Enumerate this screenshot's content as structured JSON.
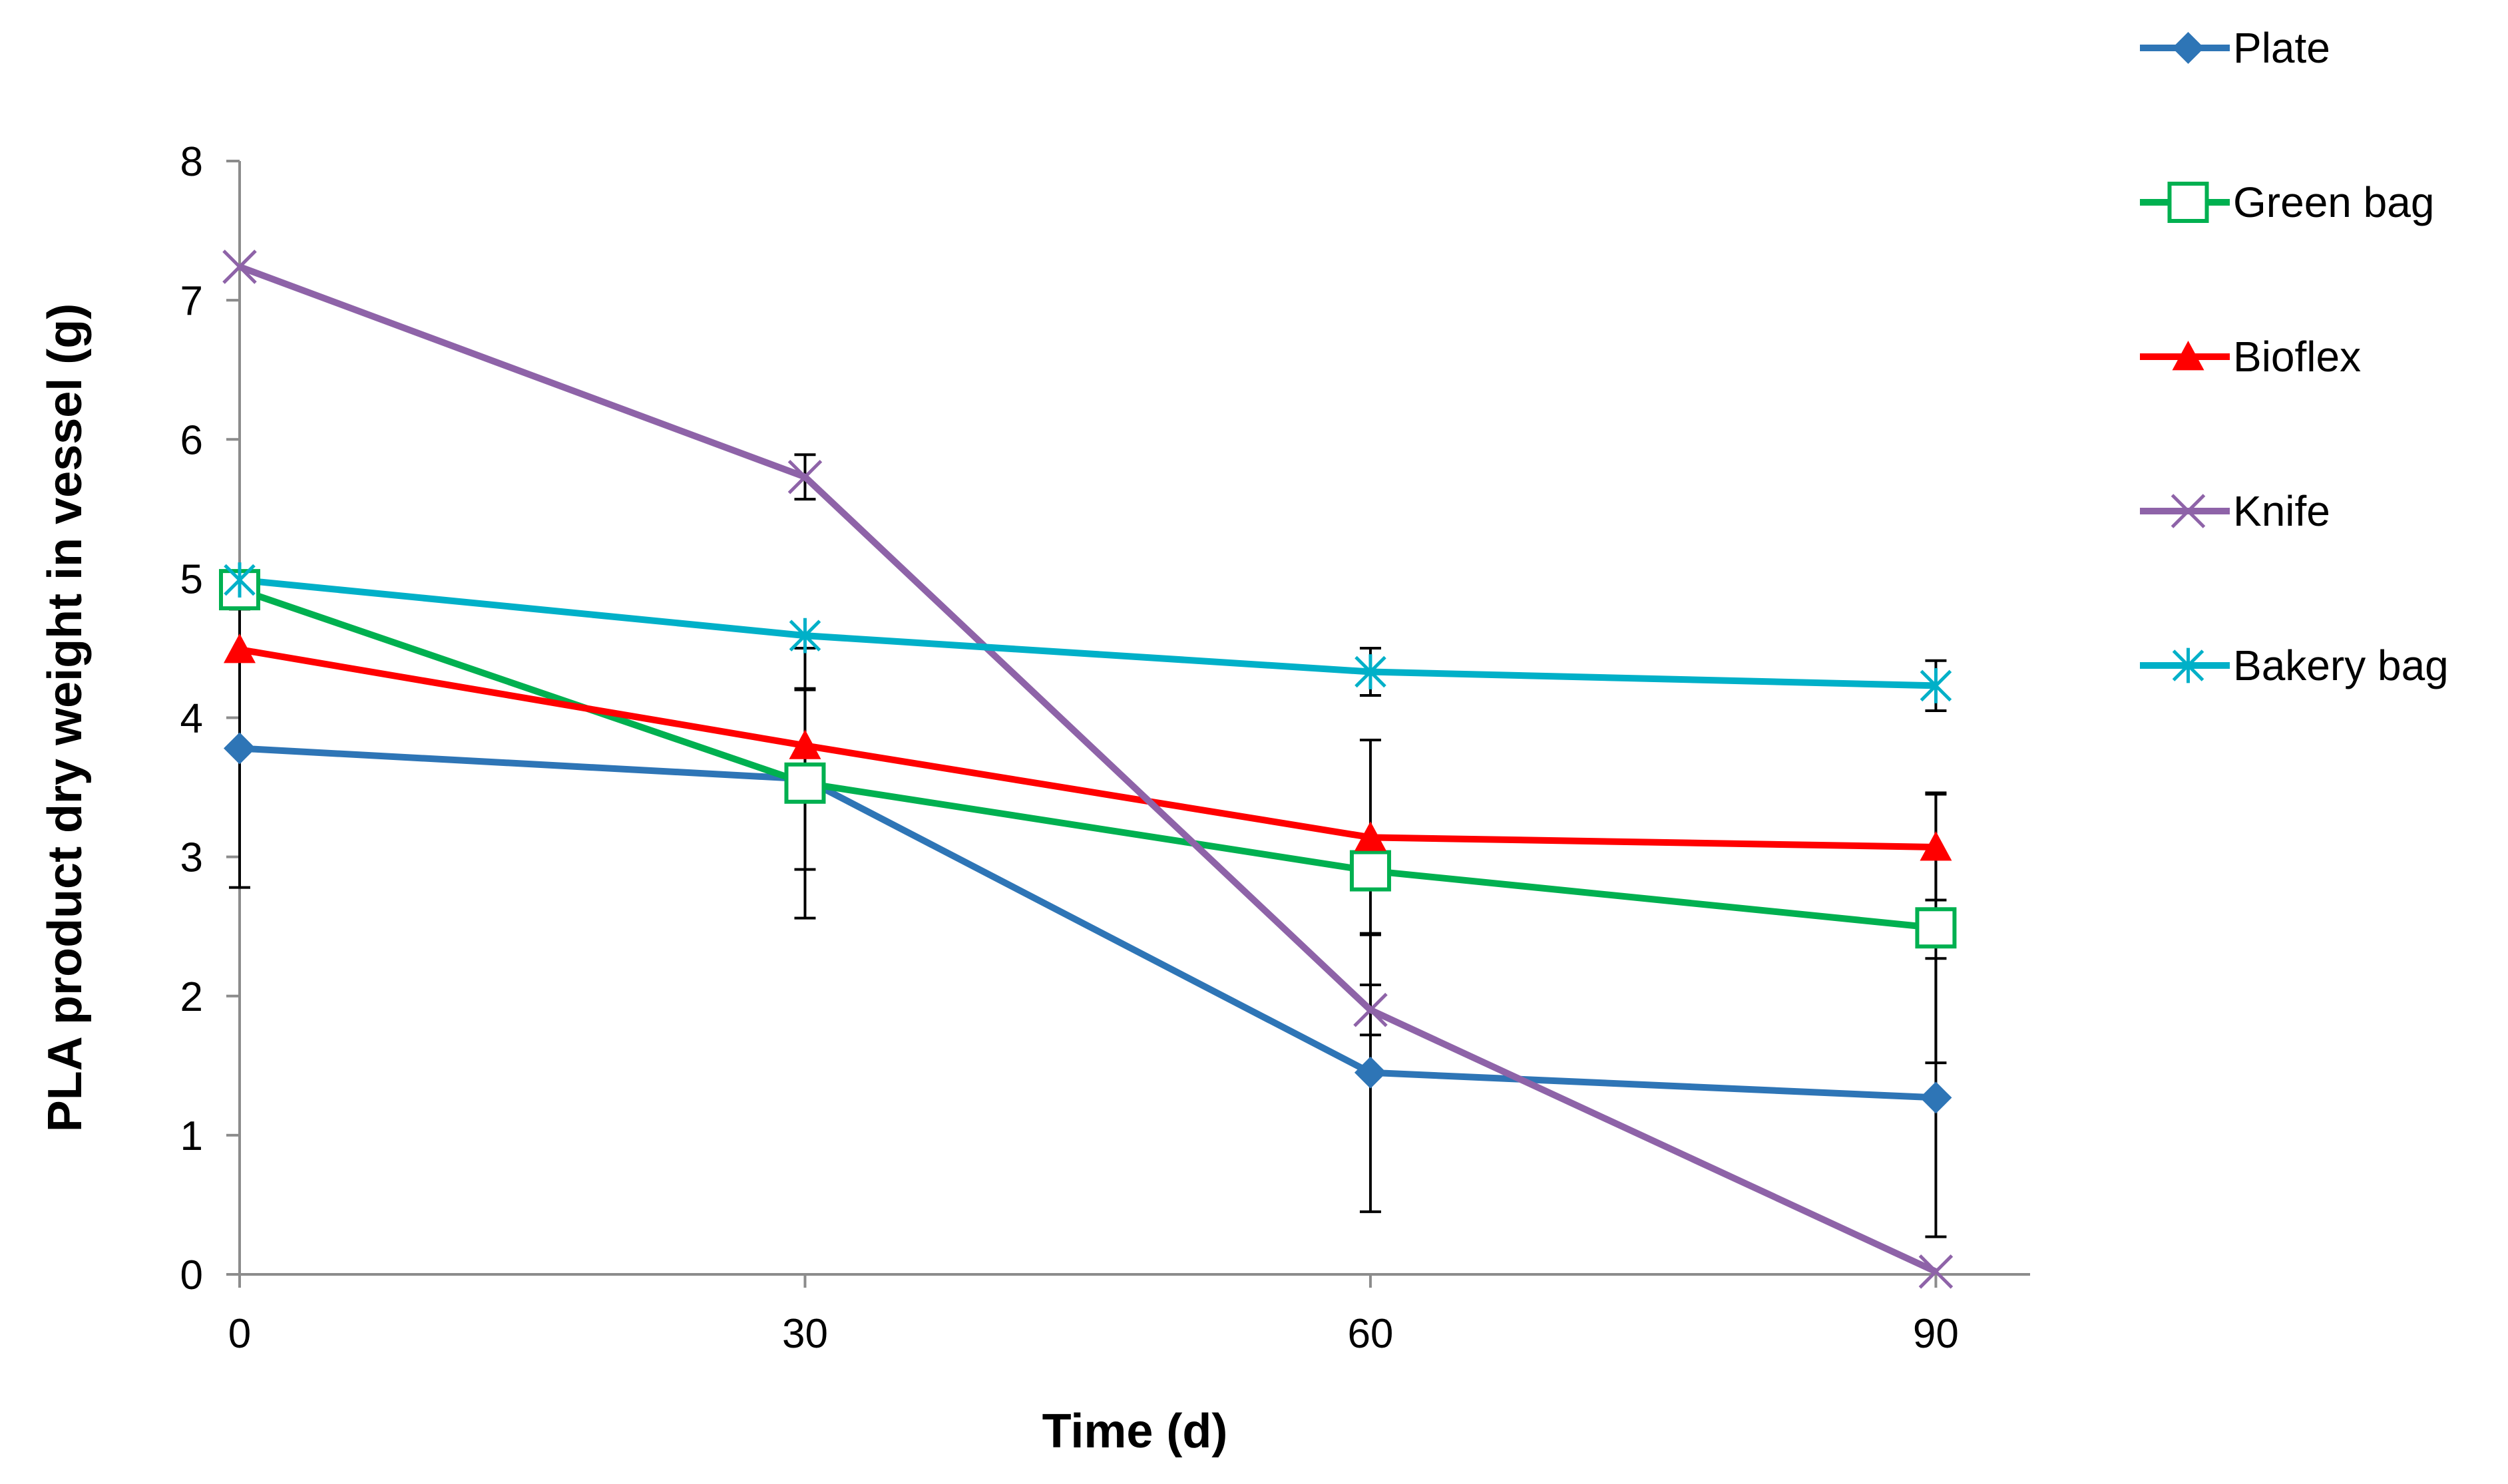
{
  "chart_data": {
    "type": "line",
    "title": "",
    "xlabel": "Time (d)",
    "ylabel": "PLA product dry weight in vessel (g)",
    "x": [
      0,
      30,
      60,
      90
    ],
    "x_ticks": [
      "0",
      "30",
      "60",
      "90"
    ],
    "y_ticks": [
      "0",
      "1",
      "2",
      "3",
      "4",
      "5",
      "6",
      "7",
      "8"
    ],
    "xlim": [
      0,
      95
    ],
    "ylim": [
      0,
      8
    ],
    "grid": false,
    "legend_position": "right",
    "series": [
      {
        "name": "Plate",
        "color": "#2E75B6",
        "marker": "diamond",
        "values": [
          3.78,
          3.56,
          1.45,
          1.27
        ],
        "error": [
          1.0,
          0.65,
          1.0,
          1.0
        ]
      },
      {
        "name": "Green bag",
        "color": "#00B050",
        "marker": "square-open",
        "values": [
          4.92,
          3.53,
          2.9,
          2.49
        ],
        "error": [
          0,
          0.97,
          0,
          0.97
        ]
      },
      {
        "name": "Bioflex",
        "color": "#FF0000",
        "marker": "triangle",
        "values": [
          4.49,
          3.8,
          3.14,
          3.07
        ],
        "error": [
          0,
          0.4,
          0.7,
          0.38
        ]
      },
      {
        "name": "Knife",
        "color": "#8E63A8",
        "marker": "x",
        "values": [
          7.24,
          5.73,
          1.9,
          0.02
        ],
        "error": [
          0,
          0.16,
          0.18,
          0
        ]
      },
      {
        "name": "Bakery bag",
        "color": "#00B0C8",
        "marker": "asterisk",
        "values": [
          4.99,
          4.59,
          4.33,
          4.23
        ],
        "error": [
          0,
          0,
          0.17,
          0.18
        ]
      }
    ]
  }
}
